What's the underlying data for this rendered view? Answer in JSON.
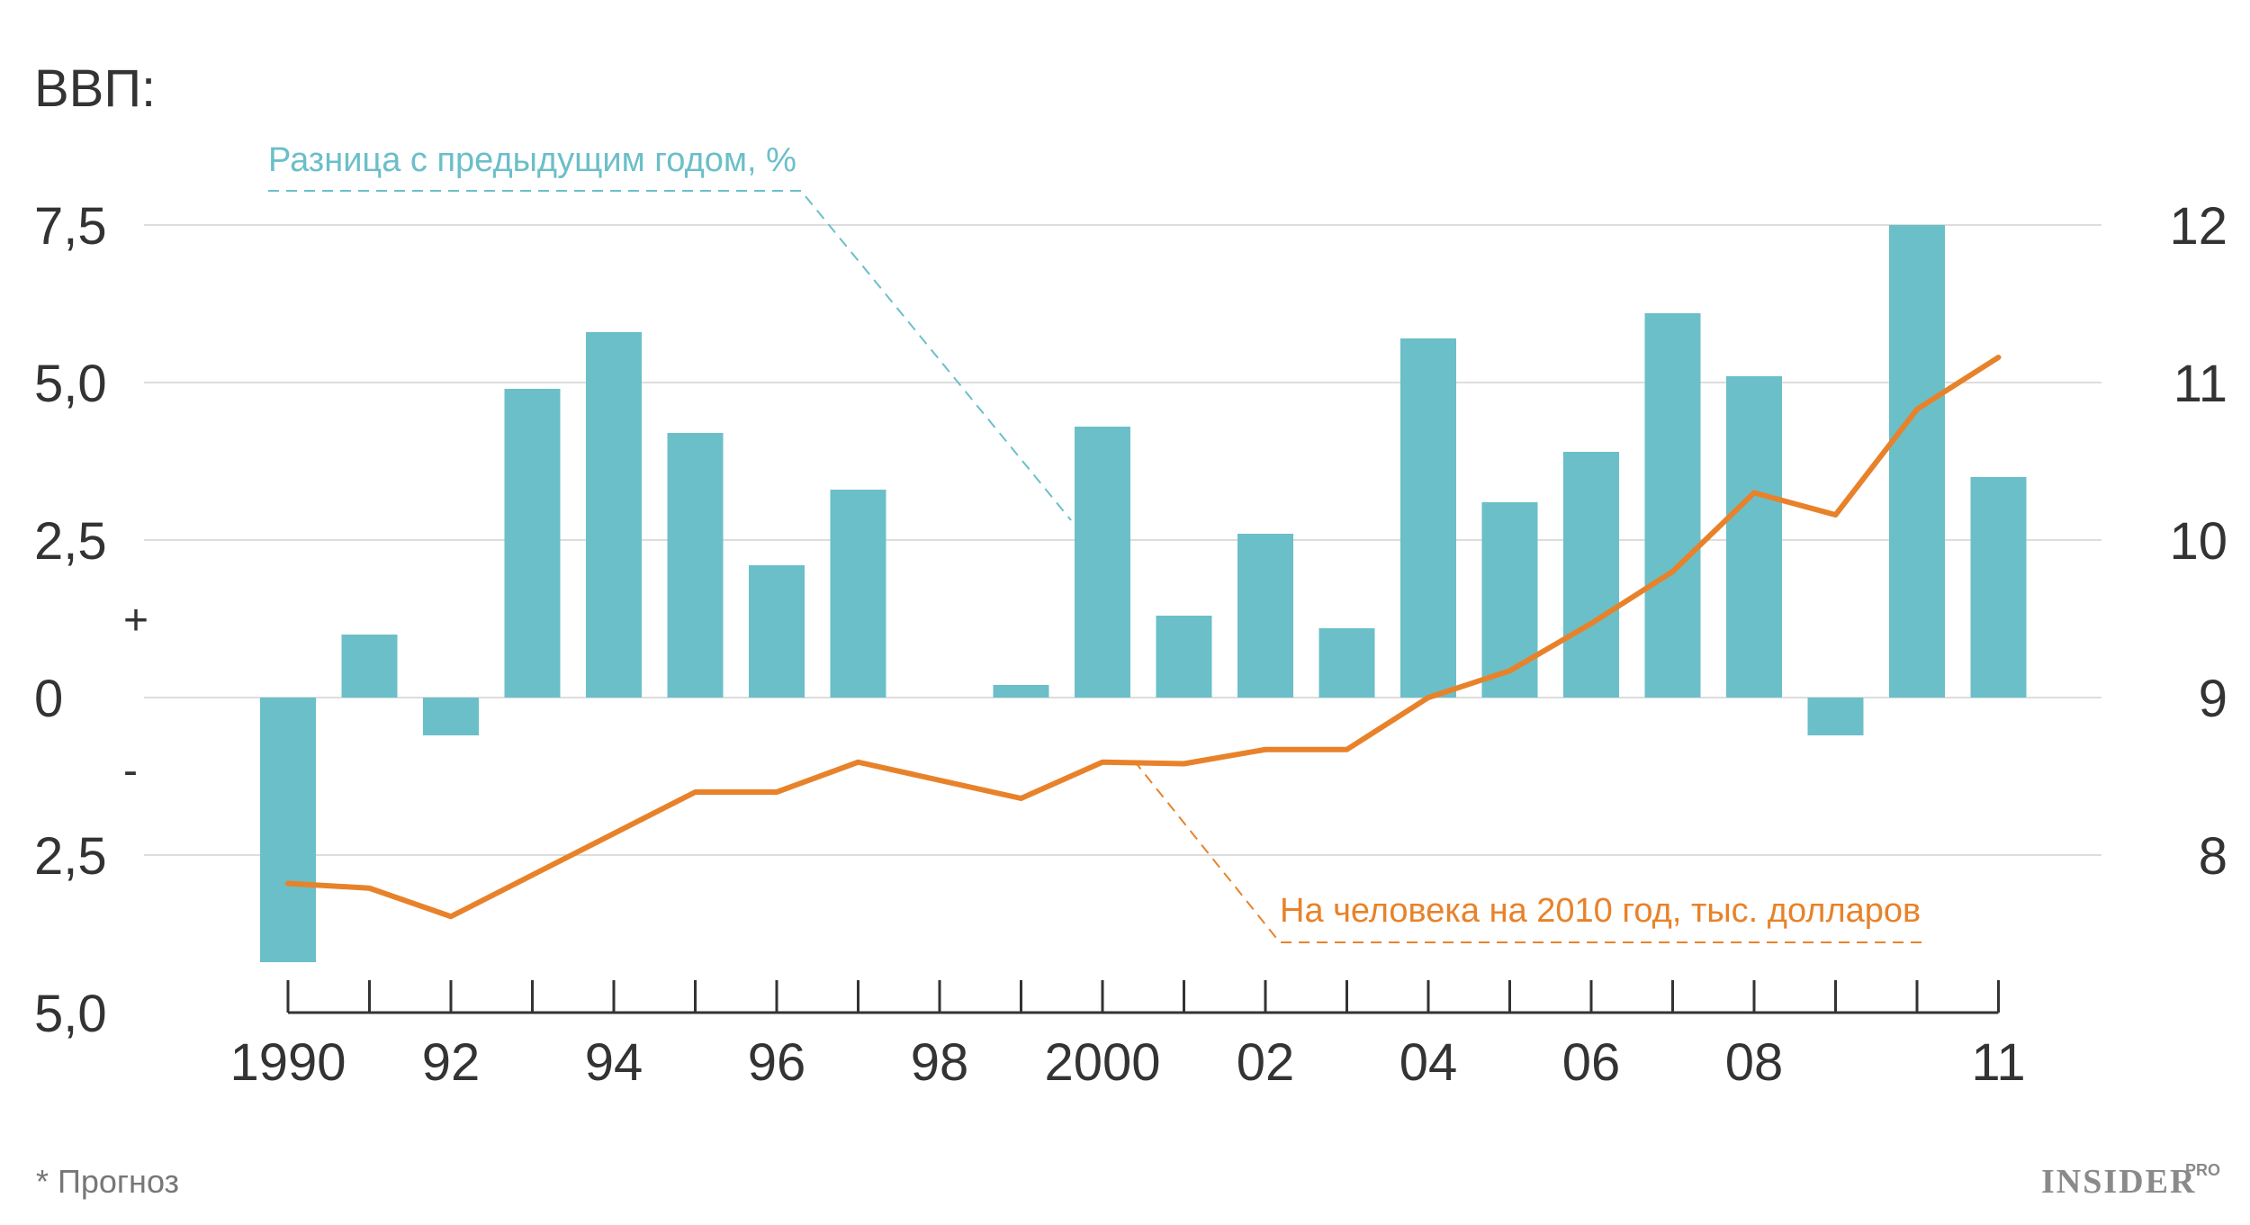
{
  "chart_data": {
    "type": "bar+line",
    "title": "ВВП:",
    "categories": [
      1990,
      1991,
      1992,
      1993,
      1994,
      1995,
      1996,
      1997,
      1998,
      1999,
      2000,
      2001,
      2002,
      2003,
      2004,
      2005,
      2006,
      2007,
      2008,
      2009,
      2010,
      2011
    ],
    "x_tick_labels": [
      "1990",
      "92",
      "94",
      "96",
      "98",
      "2000",
      "02",
      "04",
      "06",
      "08",
      "11"
    ],
    "x_tick_label_years": [
      1990,
      1992,
      1994,
      1996,
      1998,
      2000,
      2002,
      2004,
      2006,
      2008,
      2011
    ],
    "left_axis": {
      "ticks": [
        7.5,
        5.0,
        2.5,
        0,
        -2.5,
        -5.0
      ],
      "tick_labels": [
        "7,5",
        "5,0",
        "2,5",
        "0",
        "2,5",
        "5,0"
      ],
      "ylim": [
        -5,
        7.5
      ],
      "plus_label": "+",
      "minus_label": "-"
    },
    "right_axis": {
      "ticks": [
        12,
        11,
        10,
        9,
        8
      ],
      "tick_labels": [
        "12",
        "11",
        "10",
        "9",
        "8"
      ],
      "ylim": [
        7,
        12
      ]
    },
    "series": [
      {
        "name": "Разница с предыдущим годом, %",
        "type": "bar",
        "axis": "left",
        "color": "#6bbfc8",
        "values": [
          -4.2,
          1.0,
          -0.6,
          4.9,
          5.8,
          4.2,
          2.1,
          3.3,
          null,
          0.2,
          4.3,
          1.3,
          2.6,
          1.1,
          5.7,
          3.1,
          3.9,
          6.1,
          5.1,
          -0.6,
          7.5,
          3.5
        ]
      },
      {
        "name": "На человека на 2010 год, тыс. долларов",
        "type": "line",
        "axis": "right",
        "color": "#e8822a",
        "values": [
          7.82,
          7.79,
          7.61,
          null,
          null,
          8.4,
          8.4,
          8.59,
          null,
          8.36,
          8.59,
          8.58,
          8.67,
          8.67,
          9.0,
          9.17,
          9.47,
          9.8,
          10.3,
          10.16,
          10.83,
          11.16
        ]
      }
    ],
    "footnote": "* Прогноз",
    "brand": "INSIDER",
    "brand_sub": "PRO"
  },
  "colors": {
    "bar": "#6bbfc8",
    "line": "#e8822a",
    "text": "#333333",
    "grid": "#dddddd"
  }
}
